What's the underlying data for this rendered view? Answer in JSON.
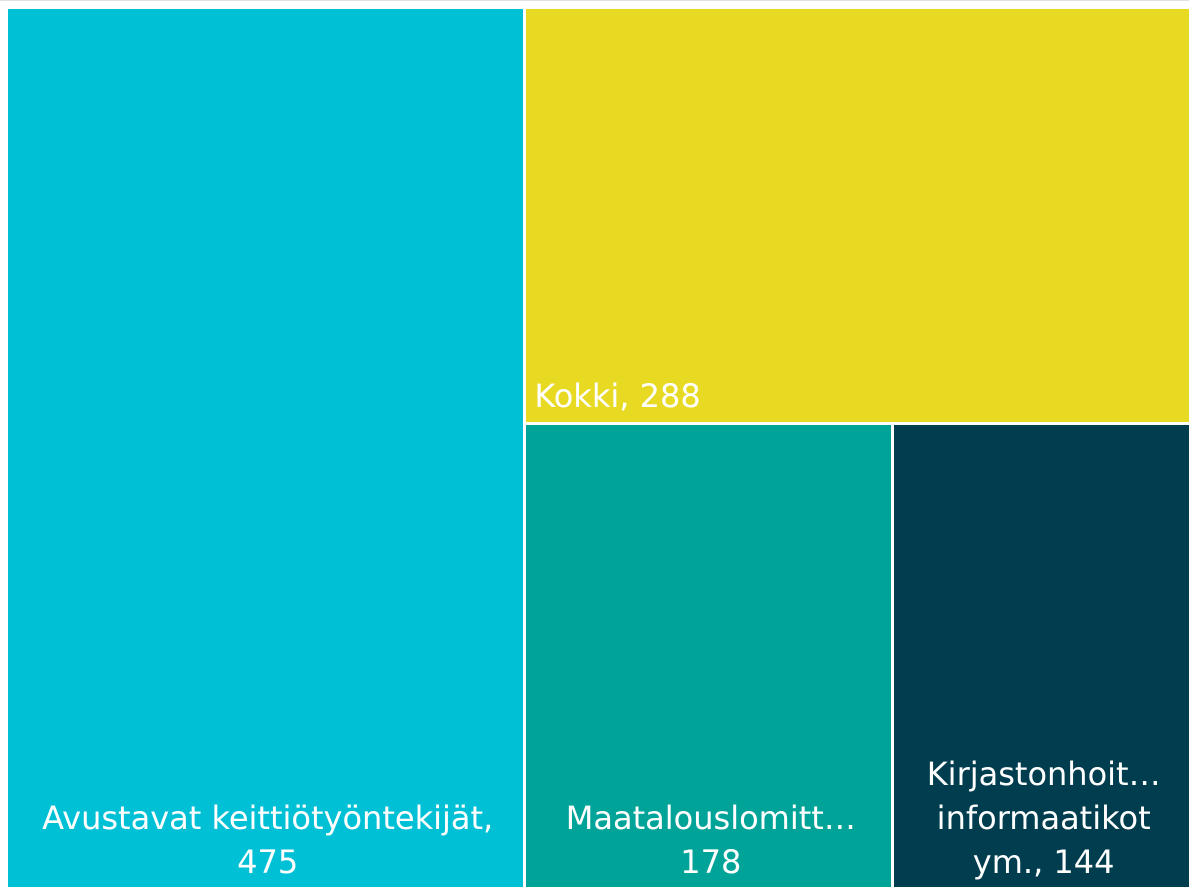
{
  "chart_data": {
    "type": "treemap",
    "values": [
      475,
      288,
      178,
      144
    ],
    "value_labels": [
      "Avustavat keittiötyöntekijät, 475",
      "Kokki, 288",
      "Maatalouslomitt… 178",
      "Kirjastonhoit… informaatikot ym., 144"
    ],
    "colors": [
      "#00c0d6",
      "#e8d922",
      "#00a398",
      "#003d4e"
    ]
  }
}
